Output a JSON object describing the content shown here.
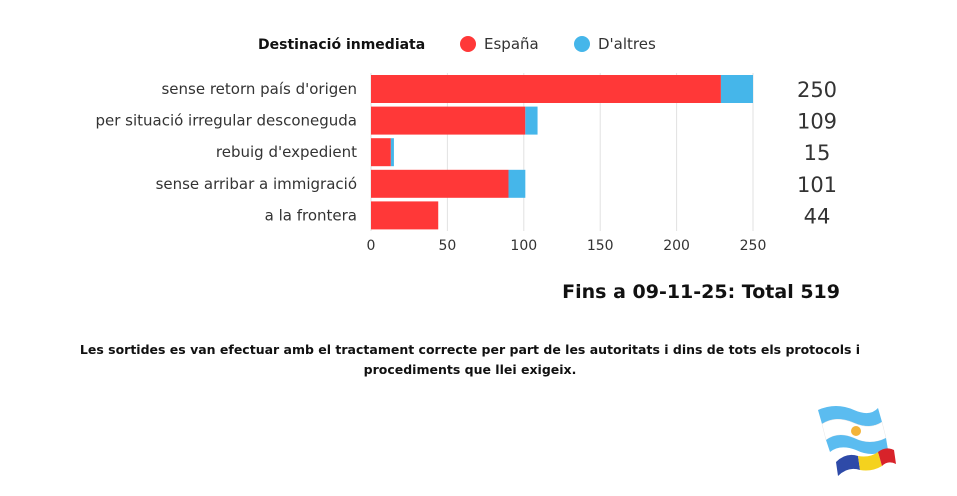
{
  "chart_data": {
    "type": "bar",
    "orientation": "horizontal",
    "stacked": true,
    "legend_title": "Destinació inmediata",
    "categories": [
      "sense retorn país d'origen",
      "per situació irregular desconeguda",
      "rebuig d'expedient",
      "sense arribar a immigració",
      "a la frontera"
    ],
    "series": [
      {
        "name": "España",
        "color": "#ff3838",
        "values": [
          229,
          101,
          13,
          90,
          44
        ]
      },
      {
        "name": "D'altres",
        "color": "#45b6ea",
        "values": [
          21,
          8,
          2,
          11,
          0
        ]
      }
    ],
    "totals": [
      "250",
      "109",
      "15",
      "101",
      "44"
    ],
    "xlim": [
      0,
      250
    ],
    "xticks": [
      0,
      50,
      100,
      150,
      200,
      250
    ],
    "grid": true,
    "legend_position": "top"
  },
  "summary": {
    "total_text": "Fins a 09-11-25: Total 519"
  },
  "note": {
    "line1": "Les sortides es van efectuar amb el tractament correcte per part de les autoritats i dins de tots els protocols i",
    "line2": "procediments que llei exigeix."
  },
  "colors": {
    "spain": "#ff3838",
    "others": "#45b6ea",
    "grid": "#e2e2e2"
  }
}
